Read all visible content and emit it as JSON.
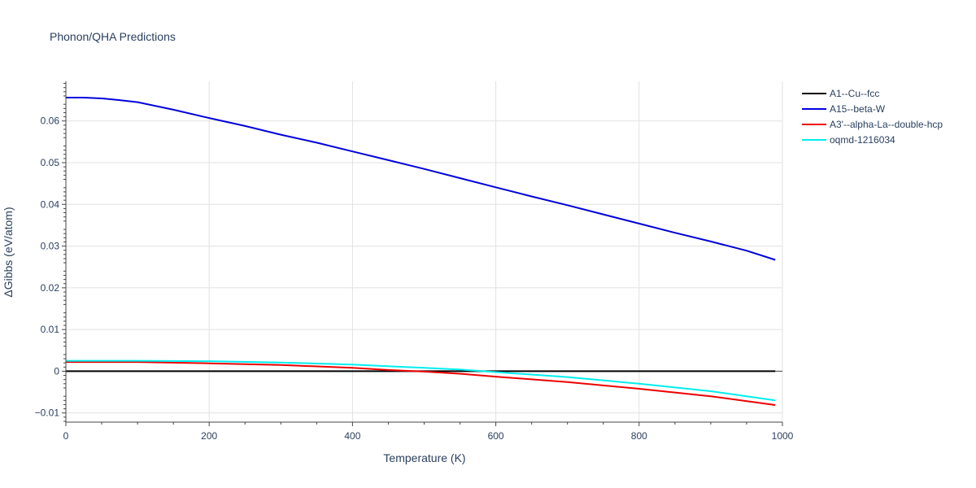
{
  "chart_data": {
    "type": "line",
    "title": "Phonon/QHA Predictions",
    "xlabel": "Temperature (K)",
    "ylabel": "ΔGibbs (eV/atom)",
    "xlim": [
      0,
      1000
    ],
    "ylim": [
      -0.0122,
      0.0695
    ],
    "x_ticks": [
      0,
      200,
      400,
      600,
      800,
      1000
    ],
    "y_ticks": [
      -0.01,
      0,
      0.01,
      0.02,
      0.03,
      0.04,
      0.05,
      0.06
    ],
    "x_tick_labels": [
      "0",
      "200",
      "400",
      "600",
      "800",
      "1000"
    ],
    "y_tick_labels": [
      "−0.01",
      "0",
      "0.01",
      "0.02",
      "0.03",
      "0.04",
      "0.05",
      "0.06"
    ],
    "grid": true,
    "legend_position": "top-right outside",
    "series": [
      {
        "name": "A1--Cu--fcc",
        "color": "#000000",
        "x": [
          0,
          100,
          200,
          300,
          400,
          500,
          600,
          700,
          800,
          900,
          990
        ],
        "y": [
          0,
          0,
          0,
          0,
          0,
          0,
          0,
          0,
          0,
          0,
          0
        ]
      },
      {
        "name": "A15--beta-W",
        "color": "#0000dd",
        "x": [
          0,
          25,
          50,
          75,
          100,
          150,
          200,
          250,
          300,
          350,
          400,
          450,
          500,
          550,
          600,
          650,
          700,
          750,
          800,
          850,
          900,
          950,
          990
        ],
        "y": [
          0.0656,
          0.0656,
          0.0654,
          0.065,
          0.0645,
          0.0627,
          0.0607,
          0.0588,
          0.0567,
          0.0548,
          0.0527,
          0.0506,
          0.0485,
          0.0463,
          0.0441,
          0.0419,
          0.0398,
          0.0376,
          0.0354,
          0.0332,
          0.0311,
          0.0289,
          0.0267
        ]
      },
      {
        "name": "A3'--alpha-La--double-hcp",
        "color": "#ee0000",
        "x": [
          0,
          100,
          200,
          300,
          400,
          450,
          500,
          550,
          600,
          700,
          800,
          900,
          990
        ],
        "y": [
          0.0022,
          0.0022,
          0.0019,
          0.0015,
          0.0008,
          0.0003,
          -0.0001,
          -0.0006,
          -0.0013,
          -0.0026,
          -0.0042,
          -0.006,
          -0.0081
        ]
      },
      {
        "name": "oqmd-1216034",
        "color": "#00eeee",
        "x": [
          0,
          100,
          200,
          300,
          400,
          500,
          550,
          600,
          700,
          800,
          900,
          990
        ],
        "y": [
          0.0025,
          0.0025,
          0.0024,
          0.0021,
          0.0016,
          0.0008,
          0.0004,
          -0.0002,
          -0.0014,
          -0.003,
          -0.0048,
          -0.007
        ]
      }
    ]
  }
}
